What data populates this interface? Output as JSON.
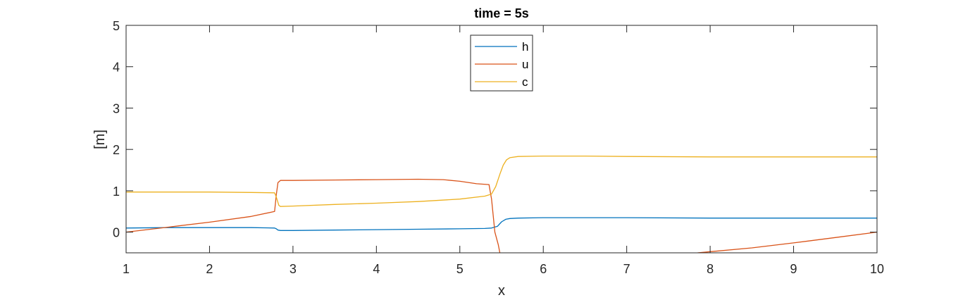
{
  "chart_data": {
    "type": "line",
    "title": "time = 5s",
    "xlabel": "x",
    "ylabel": "[m]",
    "xlim": [
      1,
      10
    ],
    "ylim": [
      -0.5,
      5
    ],
    "xticks": [
      1,
      2,
      3,
      4,
      5,
      6,
      7,
      8,
      9,
      10
    ],
    "yticks": [
      0,
      1,
      2,
      3,
      4,
      5
    ],
    "grid": false,
    "legend_position": "top-center",
    "series": [
      {
        "name": "h",
        "color": "#0072BD",
        "x": [
          1.0,
          1.5,
          2.0,
          2.5,
          2.78,
          2.8,
          2.82,
          2.85,
          3.0,
          3.5,
          4.0,
          4.5,
          5.0,
          5.3,
          5.38,
          5.45,
          5.5,
          5.55,
          5.6,
          5.7,
          6.0,
          6.5,
          7.0,
          8.0,
          9.0,
          10.0
        ],
        "y": [
          0.1,
          0.11,
          0.11,
          0.11,
          0.1,
          0.08,
          0.05,
          0.04,
          0.04,
          0.05,
          0.06,
          0.07,
          0.08,
          0.09,
          0.1,
          0.14,
          0.25,
          0.31,
          0.33,
          0.34,
          0.35,
          0.35,
          0.35,
          0.34,
          0.34,
          0.34
        ]
      },
      {
        "name": "u",
        "color": "#D95319",
        "x": [
          1.0,
          1.5,
          2.0,
          2.5,
          2.78,
          2.8,
          2.82,
          2.85,
          3.0,
          3.5,
          4.0,
          4.5,
          4.8,
          5.0,
          5.2,
          5.35,
          5.38,
          5.42,
          5.46,
          5.48,
          5.5,
          7.85,
          8.5,
          9.0,
          9.5,
          10.0
        ],
        "y": [
          0.0,
          0.12,
          0.24,
          0.38,
          0.5,
          0.9,
          1.2,
          1.25,
          1.25,
          1.26,
          1.27,
          1.28,
          1.27,
          1.23,
          1.17,
          1.15,
          0.8,
          0.0,
          -0.3,
          -0.5,
          -0.6,
          -0.5,
          -0.38,
          -0.26,
          -0.13,
          0.0
        ]
      },
      {
        "name": "c",
        "color": "#EDB120",
        "x": [
          1.0,
          1.5,
          2.0,
          2.5,
          2.78,
          2.8,
          2.83,
          2.85,
          3.0,
          3.5,
          4.0,
          4.5,
          5.0,
          5.3,
          5.38,
          5.43,
          5.48,
          5.52,
          5.56,
          5.6,
          5.7,
          6.0,
          6.5,
          7.0,
          8.0,
          9.0,
          10.0
        ],
        "y": [
          0.97,
          0.97,
          0.97,
          0.96,
          0.95,
          0.85,
          0.65,
          0.62,
          0.63,
          0.67,
          0.7,
          0.74,
          0.8,
          0.87,
          0.92,
          1.1,
          1.4,
          1.62,
          1.75,
          1.8,
          1.83,
          1.84,
          1.84,
          1.83,
          1.82,
          1.82,
          1.82
        ]
      }
    ]
  }
}
